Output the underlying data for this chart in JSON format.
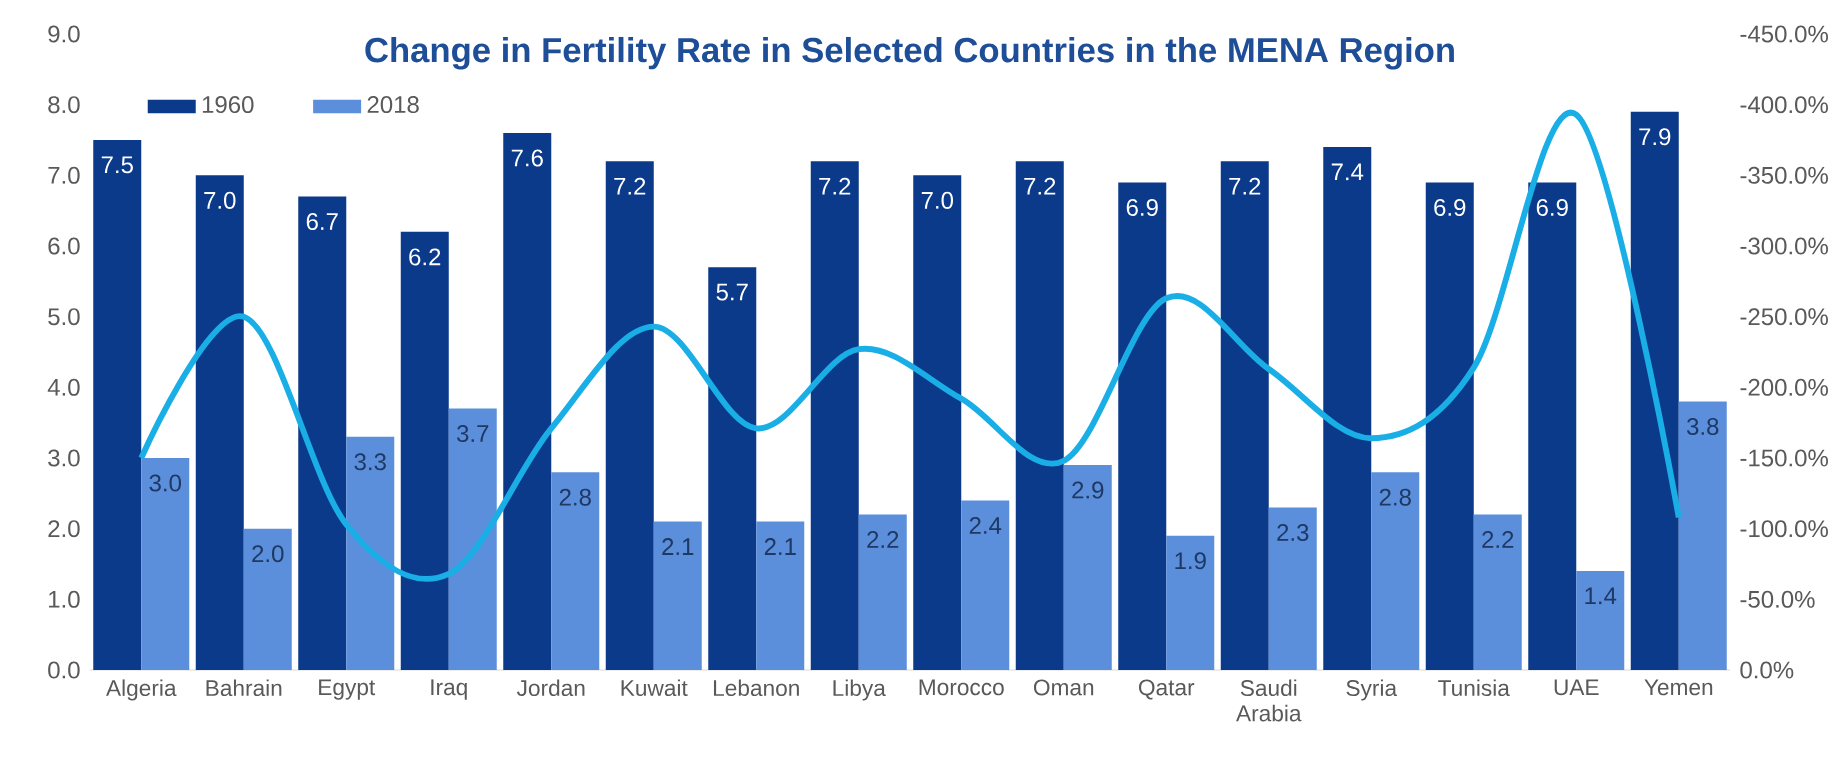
{
  "chart_data": {
    "type": "bar",
    "title": "Change in Fertility Rate in Selected Countries in the MENA Region",
    "categories": [
      "Algeria",
      "Bahrain",
      "Egypt",
      "Iraq",
      "Jordan",
      "Kuwait",
      "Lebanon",
      "Libya",
      "Morocco",
      "Oman",
      "Qatar",
      "Saudi Arabia",
      "Syria",
      "Tunisia",
      "UAE",
      "Yemen"
    ],
    "series": [
      {
        "name": "1960",
        "color": "#0b3a8a",
        "values": [
          7.5,
          7.0,
          6.7,
          6.2,
          7.6,
          7.2,
          5.7,
          7.2,
          7.0,
          7.2,
          6.9,
          7.2,
          7.4,
          6.9,
          6.9,
          7.9
        ],
        "value_labels": [
          "7.5",
          "7.0",
          "6.7",
          "6.2",
          "7.6",
          "7.2",
          "5.7",
          "7.2",
          "7.0",
          "7.2",
          "6.9",
          "7.2",
          "7.4",
          "6.9",
          "6.9",
          "7.9"
        ]
      },
      {
        "name": "2018",
        "color": "#5b8fdb",
        "values": [
          3.0,
          2.0,
          3.3,
          3.7,
          2.8,
          2.1,
          2.1,
          2.2,
          2.4,
          2.9,
          1.9,
          2.3,
          2.8,
          2.2,
          1.4,
          3.8
        ],
        "value_labels": [
          "3.0",
          "2.0",
          "3.3",
          "3.7",
          "2.8",
          "2.1",
          "2.1",
          "2.2",
          "2.4",
          "2.9",
          "1.9",
          "2.3",
          "2.8",
          "2.2",
          "1.4",
          "3.8"
        ]
      },
      {
        "type": "line",
        "axis": "y2",
        "color": "#1aaee6",
        "values": [
          -150,
          -250,
          -103,
          -68,
          -171,
          -243,
          -171,
          -227,
          -192,
          -148,
          -263,
          -213,
          -164,
          -214,
          -393,
          -108
        ]
      }
    ],
    "ylim": [
      0,
      9
    ],
    "yticks": [
      {
        "value": 0,
        "label": "0.0"
      },
      {
        "value": 1,
        "label": "1.0"
      },
      {
        "value": 2,
        "label": "2.0"
      },
      {
        "value": 3,
        "label": "3.0"
      },
      {
        "value": 4,
        "label": "4.0"
      },
      {
        "value": 5,
        "label": "5.0"
      },
      {
        "value": 6,
        "label": "6.0"
      },
      {
        "value": 7,
        "label": "7.0"
      },
      {
        "value": 8,
        "label": "8.0"
      },
      {
        "value": 9,
        "label": "9.0"
      }
    ],
    "y2lim": [
      0,
      -450
    ],
    "y2ticks": [
      {
        "value": 0,
        "label": "0.0%"
      },
      {
        "value": -50,
        "label": "-50.0%"
      },
      {
        "value": -100,
        "label": "-100.0%"
      },
      {
        "value": -150,
        "label": "-150.0%"
      },
      {
        "value": -200,
        "label": "-200.0%"
      },
      {
        "value": -250,
        "label": "-250.0%"
      },
      {
        "value": -300,
        "label": "-300.0%"
      },
      {
        "value": -350,
        "label": "-350.0%"
      },
      {
        "value": -400,
        "label": "-400.0%"
      },
      {
        "value": -450,
        "label": "-450.0%"
      }
    ],
    "legend": "top left"
  }
}
